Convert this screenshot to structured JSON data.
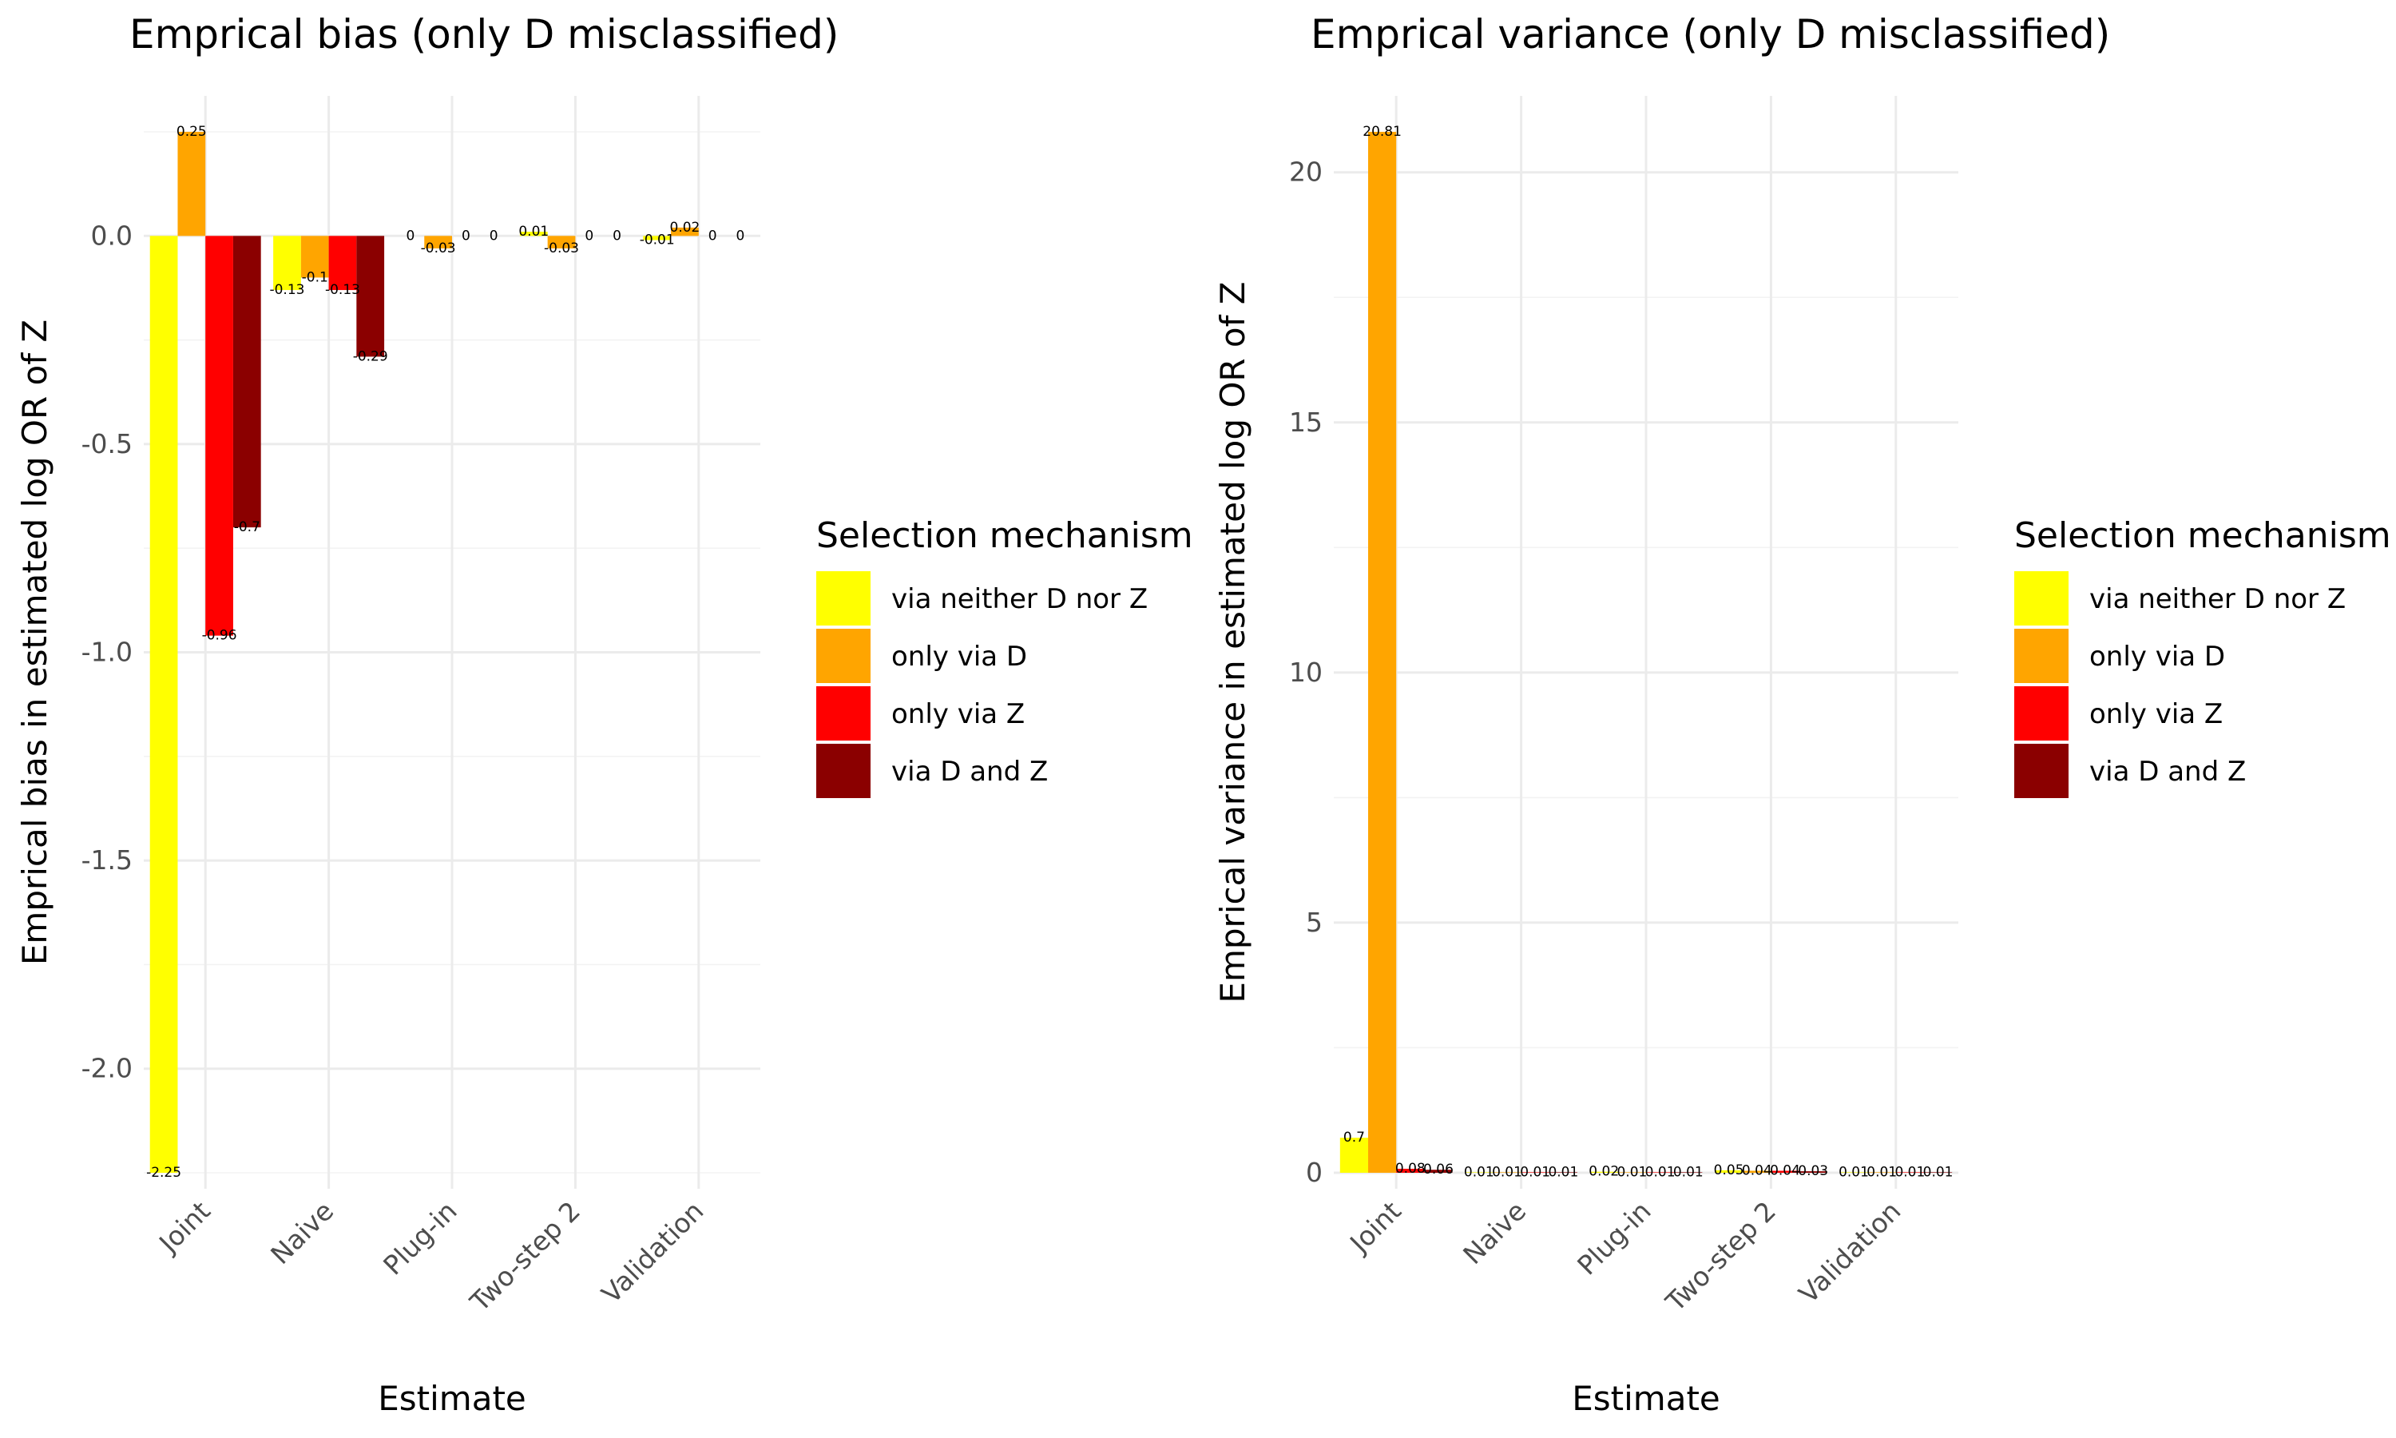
{
  "chart_data": [
    {
      "type": "bar",
      "title": "Emprical bias (only D misclassified)",
      "xlabel": "Estimate",
      "ylabel": "Emprical bias in estimated log OR of Z",
      "categories": [
        "Joint",
        "Naive",
        "Plug-in",
        "Two-step 2",
        "Validation"
      ],
      "ylim": [
        -2.25,
        0.25
      ],
      "yticks": [
        -2.0,
        -1.5,
        -1.0,
        -0.5,
        0.0
      ],
      "ytick_labels": [
        "-2.0",
        "-1.5",
        "-1.0",
        "-0.5",
        "0.0"
      ],
      "series": [
        {
          "name": "via neither D nor Z",
          "color": "#FFFF00",
          "values": [
            -2.25,
            -0.13,
            0,
            0.01,
            -0.01
          ],
          "labels": [
            "-2.25",
            "-0.13",
            "0",
            "0.01",
            "-0.01"
          ]
        },
        {
          "name": "only via D",
          "color": "#FFA500",
          "values": [
            0.25,
            -0.1,
            -0.03,
            -0.03,
            0.02
          ],
          "labels": [
            "0.25",
            "-0.1",
            "-0.03",
            "-0.03",
            "0.02"
          ]
        },
        {
          "name": "only via Z",
          "color": "#FF0000",
          "values": [
            -0.96,
            -0.13,
            0,
            0,
            0
          ],
          "labels": [
            "-0.96",
            "-0.13",
            "0",
            "0",
            "0"
          ]
        },
        {
          "name": "via D and Z",
          "color": "#8B0000",
          "values": [
            -0.7,
            -0.29,
            0,
            0,
            0
          ],
          "labels": [
            "-0.7",
            "-0.29",
            "0",
            "0",
            "0"
          ]
        }
      ],
      "legend": {
        "title": "Selection mechanism",
        "position": "right"
      },
      "grid": true
    },
    {
      "type": "bar",
      "title": "Emprical variance (only D misclassified)",
      "xlabel": "Estimate",
      "ylabel": "Emprical variance in estimated log OR of Z",
      "categories": [
        "Joint",
        "Naive",
        "Plug-in",
        "Two-step 2",
        "Validation"
      ],
      "ylim": [
        0,
        20.81
      ],
      "yticks": [
        0,
        5,
        10,
        15,
        20
      ],
      "ytick_labels": [
        "0",
        "5",
        "10",
        "15",
        "20"
      ],
      "series": [
        {
          "name": "via neither D nor Z",
          "color": "#FFFF00",
          "values": [
            0.7,
            0.01,
            0.02,
            0.05,
            0.01
          ],
          "labels": [
            "0.7",
            "0.01",
            "0.02",
            "0.05",
            "0.01"
          ]
        },
        {
          "name": "only via D",
          "color": "#FFA500",
          "values": [
            20.81,
            0.01,
            0.01,
            0.04,
            0.01
          ],
          "labels": [
            "20.81",
            "0.01",
            "0.01",
            "0.04",
            "0.01"
          ]
        },
        {
          "name": "only via Z",
          "color": "#FF0000",
          "values": [
            0.08,
            0.01,
            0.01,
            0.04,
            0.01
          ],
          "labels": [
            "0.08",
            "0.01",
            "0.01",
            "0.04",
            "0.01"
          ]
        },
        {
          "name": "via D and Z",
          "color": "#8B0000",
          "values": [
            0.06,
            0.01,
            0.01,
            0.03,
            0.01
          ],
          "labels": [
            "0.06",
            "0.01",
            "0.01",
            "0.03",
            "0.01"
          ]
        }
      ],
      "legend": {
        "title": "Selection mechanism",
        "position": "right"
      },
      "grid": true
    }
  ]
}
